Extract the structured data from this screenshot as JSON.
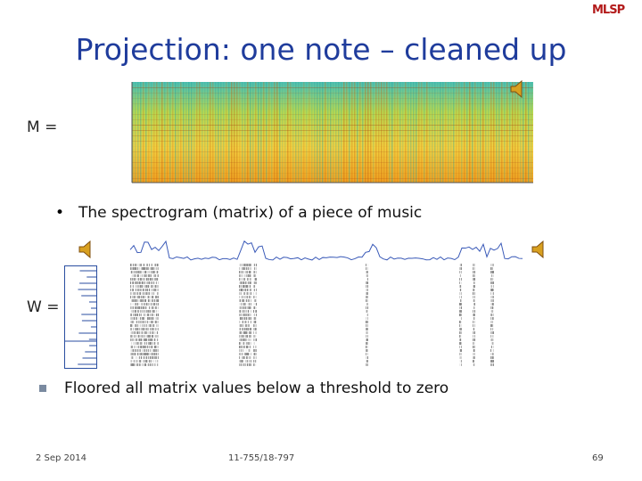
{
  "logo": "MLSP",
  "title": "Projection: one note – cleaned up",
  "m_label": "M =",
  "bullet_1": "The spectrogram (matrix) of a piece of music",
  "w_label": "W =",
  "bullet_2": "Floored all matrix values below a threshold to zero",
  "footer": {
    "date": "2 Sep 2014",
    "course": "11-755/18-797",
    "page": "69"
  }
}
